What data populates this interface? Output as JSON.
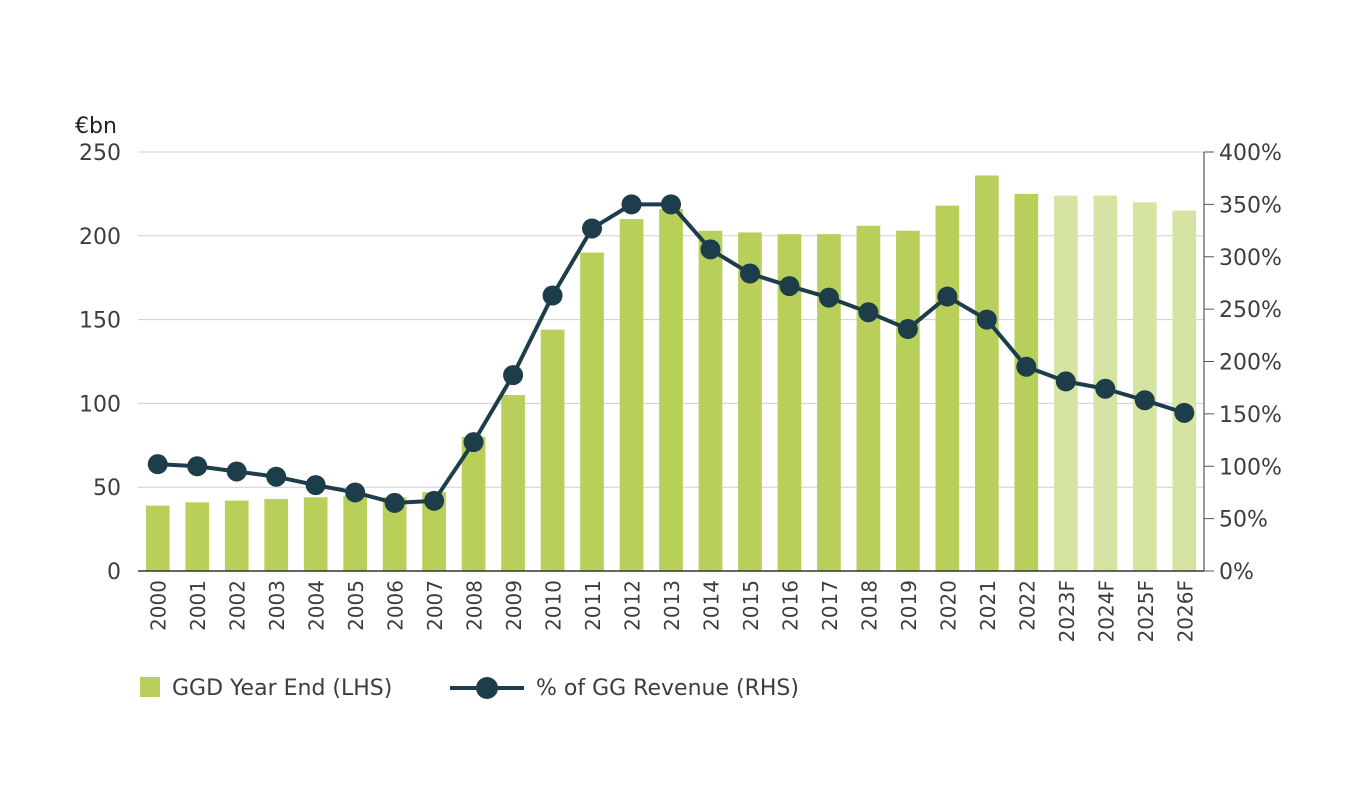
{
  "chart_data": {
    "type": "bar",
    "y_unit_label": "€bn",
    "categories": [
      "2000",
      "2001",
      "2002",
      "2003",
      "2004",
      "2005",
      "2006",
      "2007",
      "2008",
      "2009",
      "2010",
      "2011",
      "2012",
      "2013",
      "2014",
      "2015",
      "2016",
      "2017",
      "2018",
      "2019",
      "2020",
      "2021",
      "2022",
      "2023F",
      "2024F",
      "2025F",
      "2026F"
    ],
    "forecast_categories": [
      "2023F",
      "2024F",
      "2025F",
      "2026F"
    ],
    "ylim_left": [
      0,
      250
    ],
    "yticks_left": [
      "0",
      "50",
      "100",
      "150",
      "200",
      "250"
    ],
    "yticks_left_values": [
      0,
      50,
      100,
      150,
      200,
      250
    ],
    "ylim_right": [
      0,
      400
    ],
    "yticks_right": [
      "0%",
      "50%",
      "100%",
      "150%",
      "200%",
      "250%",
      "300%",
      "350%",
      "400%"
    ],
    "yticks_right_values": [
      0,
      50,
      100,
      150,
      200,
      250,
      300,
      350,
      400
    ],
    "grid": true,
    "legend_position": "bottom-left",
    "series": [
      {
        "name": "GGD Year End (LHS)",
        "type": "bar",
        "axis": "left",
        "values": [
          39,
          41,
          42,
          43,
          44,
          45,
          44,
          47,
          80,
          105,
          144,
          190,
          210,
          216,
          203,
          202,
          201,
          201,
          206,
          203,
          218,
          236,
          225,
          224,
          224,
          220,
          215
        ],
        "color": "#b8d05a",
        "forecast_color": "#d6e4a3"
      },
      {
        "name": "% of GG Revenue (RHS)",
        "type": "line",
        "axis": "right",
        "values": [
          102,
          100,
          95,
          90,
          82,
          75,
          65,
          67,
          123,
          187,
          263,
          327,
          350,
          350,
          307,
          284,
          272,
          261,
          247,
          231,
          262,
          240,
          195,
          181,
          174,
          163,
          151
        ],
        "color": "#1d3d4b"
      }
    ]
  }
}
